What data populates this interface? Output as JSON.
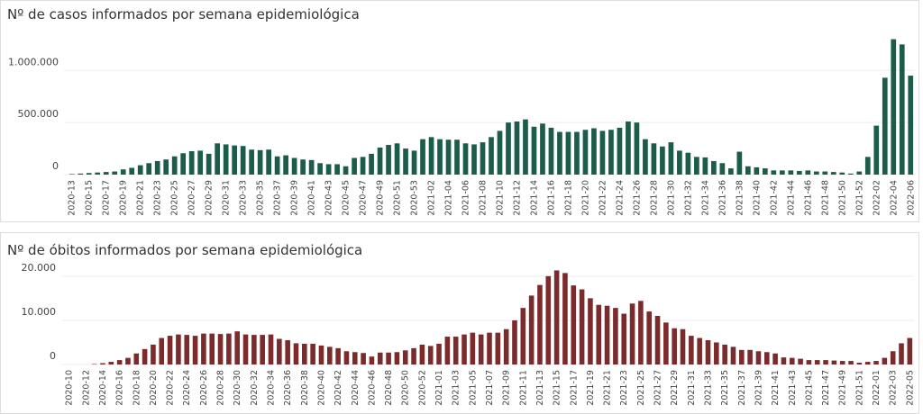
{
  "chart_data": [
    {
      "type": "bar",
      "title": "Nº de casos informados por semana epidemiológica",
      "color": "#1b5c4a",
      "grid": true,
      "ylim": [
        0,
        1400000
      ],
      "yticks": [
        0,
        {
          "value": 500000,
          "label": "500.000"
        },
        {
          "value": 1000000,
          "label": "1.000.000"
        }
      ],
      "categories": [
        "2020-13",
        null,
        "2020-15",
        null,
        "2020-17",
        null,
        "2020-19",
        null,
        "2020-21",
        null,
        "2020-23",
        null,
        "2020-25",
        null,
        "2020-27",
        null,
        "2020-29",
        null,
        "2020-31",
        null,
        "2020-33",
        null,
        "2020-35",
        null,
        "2020-37",
        null,
        "2020-39",
        null,
        "2020-41",
        null,
        "2020-43",
        null,
        "2020-45",
        null,
        "2020-47",
        null,
        "2020-49",
        null,
        "2020-51",
        null,
        "2020-53",
        null,
        "2021-02",
        null,
        "2021-04",
        null,
        "2021-06",
        null,
        "2021-08",
        null,
        "2021-10",
        null,
        "2021-12",
        null,
        "2021-14",
        null,
        "2021-16",
        null,
        "2021-18",
        null,
        "2021-20",
        null,
        "2021-22",
        null,
        "2021-24",
        null,
        "2021-26",
        null,
        "2021-28",
        null,
        "2021-30",
        null,
        "2021-32",
        null,
        "2021-34",
        null,
        "2021-36",
        null,
        "2021-38",
        null,
        "2021-40",
        null,
        "2021-42",
        null,
        "2021-44",
        null,
        "2021-46",
        null,
        "2021-48",
        null,
        "2021-50",
        null,
        "2021-52",
        null,
        "2022-02",
        null,
        "2022-04",
        null,
        "2022-06"
      ],
      "values": [
        5000,
        10000,
        15000,
        20000,
        25000,
        30000,
        50000,
        65000,
        90000,
        110000,
        130000,
        145000,
        175000,
        205000,
        225000,
        230000,
        200000,
        300000,
        290000,
        280000,
        275000,
        240000,
        235000,
        240000,
        175000,
        185000,
        160000,
        145000,
        140000,
        110000,
        100000,
        100000,
        80000,
        160000,
        170000,
        200000,
        260000,
        285000,
        300000,
        250000,
        230000,
        340000,
        360000,
        340000,
        335000,
        335000,
        300000,
        290000,
        310000,
        360000,
        420000,
        500000,
        510000,
        530000,
        460000,
        490000,
        450000,
        410000,
        410000,
        410000,
        430000,
        445000,
        420000,
        430000,
        450000,
        510000,
        500000,
        340000,
        300000,
        270000,
        310000,
        230000,
        210000,
        170000,
        165000,
        130000,
        110000,
        60000,
        220000,
        80000,
        70000,
        60000,
        40000,
        40000,
        40000,
        35000,
        40000,
        30000,
        30000,
        25000,
        20000,
        10000,
        30000,
        170000,
        470000,
        930000,
        1300000,
        1250000,
        950000
      ]
    },
    {
      "type": "bar",
      "title": "Nº de óbitos informados por semana epidemiológica",
      "color": "#7b2b2c",
      "grid": true,
      "ylim": [
        0,
        22000
      ],
      "yticks": [
        0,
        {
          "value": 10000,
          "label": "10.000"
        },
        {
          "value": 20000,
          "label": "20.000"
        }
      ],
      "categories": [
        "2020-10",
        null,
        "2020-12",
        null,
        "2020-14",
        null,
        "2020-16",
        null,
        "2020-18",
        null,
        "2020-20",
        null,
        "2020-22",
        null,
        "2020-24",
        null,
        "2020-26",
        null,
        "2020-28",
        null,
        "2020-30",
        null,
        "2020-32",
        null,
        "2020-34",
        null,
        "2020-36",
        null,
        "2020-38",
        null,
        "2020-40",
        null,
        "2020-42",
        null,
        "2020-44",
        null,
        "2020-46",
        null,
        "2020-48",
        null,
        "2020-50",
        null,
        "2020-52",
        null,
        "2021-01",
        null,
        "2021-03",
        null,
        "2021-05",
        null,
        "2021-07",
        null,
        "2021-09",
        null,
        "2021-11",
        null,
        "2021-13",
        null,
        "2021-15",
        null,
        "2021-17",
        null,
        "2021-19",
        null,
        "2021-21",
        null,
        "2021-23",
        null,
        "2021-25",
        null,
        "2021-27",
        null,
        "2021-29",
        null,
        "2021-31",
        null,
        "2021-33",
        null,
        "2021-35",
        null,
        "2021-37",
        null,
        "2021-39",
        null,
        "2021-41",
        null,
        "2021-43",
        null,
        "2021-45",
        null,
        "2021-47",
        null,
        "2021-49",
        null,
        "2021-51",
        null,
        "2022-01",
        null,
        "2022-03",
        null,
        "2022-05"
      ],
      "values": [
        0,
        0,
        0,
        100,
        300,
        600,
        1000,
        1500,
        2500,
        3500,
        4500,
        6000,
        6500,
        6800,
        6700,
        6500,
        7000,
        7000,
        6900,
        7000,
        7500,
        6800,
        6700,
        6700,
        6800,
        5800,
        5500,
        4800,
        4700,
        4700,
        4300,
        4000,
        3700,
        3000,
        2800,
        2600,
        1800,
        2700,
        2700,
        2800,
        3200,
        3700,
        4500,
        4200,
        4700,
        6300,
        6300,
        6800,
        7200,
        6800,
        7200,
        7200,
        8000,
        10000,
        12800,
        15600,
        18000,
        20000,
        21300,
        20700,
        17900,
        17000,
        15000,
        13500,
        13300,
        12800,
        11500,
        13800,
        14400,
        12000,
        11000,
        9500,
        8200,
        8000,
        6500,
        6000,
        5500,
        5000,
        4500,
        4000,
        3300,
        3300,
        3000,
        2800,
        2500,
        1600,
        1500,
        1300,
        1000,
        1000,
        1000,
        900,
        800,
        800,
        400,
        600,
        800,
        1500,
        3000,
        4800,
        6000
      ]
    }
  ]
}
